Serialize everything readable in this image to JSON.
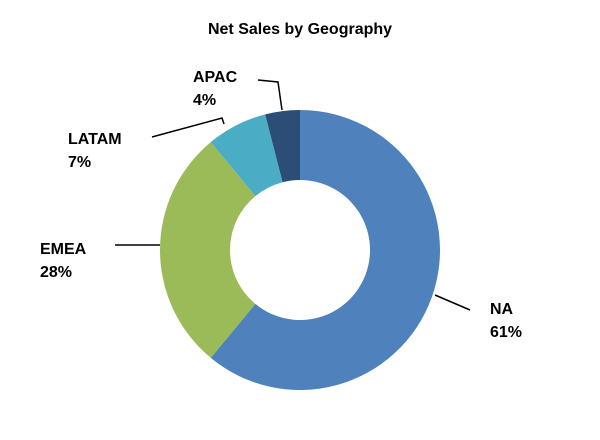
{
  "chart_data": {
    "type": "donut",
    "title": "Net Sales by Geography",
    "categories": [
      "NA",
      "EMEA",
      "LATAM",
      "APAC"
    ],
    "values": [
      61,
      28,
      7,
      4
    ],
    "value_labels": [
      "61%",
      "28%",
      "7%",
      "4%"
    ],
    "colors": [
      "#4f81bd",
      "#9bbb59",
      "#4bacc6",
      "#2c4d75"
    ]
  }
}
